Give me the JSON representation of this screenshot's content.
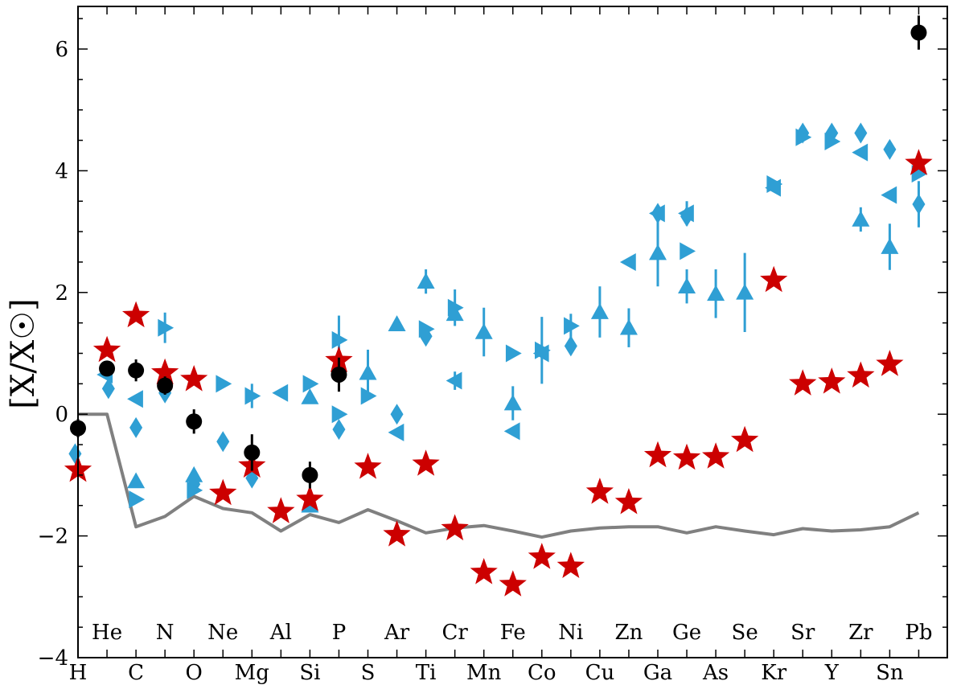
{
  "chart_data": {
    "type": "scatter",
    "ylabel": "[X/X☉]",
    "ylim": [
      -4,
      6.7
    ],
    "yticks": [
      -4,
      -2,
      0,
      2,
      4,
      6
    ],
    "grid": false,
    "elements_bottom": [
      "H",
      "C",
      "O",
      "Mg",
      "Si",
      "S",
      "Ti",
      "Mn",
      "Co",
      "Cu",
      "Ga",
      "As",
      "Kr",
      "Y",
      "Sn"
    ],
    "elements_top": [
      "He",
      "N",
      "Ne",
      "Al",
      "P",
      "Ar",
      "Cr",
      "Fe",
      "Ni",
      "Zn",
      "Ge",
      "Se",
      "Sr",
      "Zr",
      "Pb"
    ],
    "element_order": [
      "H",
      "He",
      "C",
      "N",
      "O",
      "Ne",
      "Mg",
      "Al",
      "Si",
      "P",
      "S",
      "Ar",
      "Ti",
      "Cr",
      "Mn",
      "Fe",
      "Co",
      "Ni",
      "Cu",
      "Zn",
      "Ga",
      "Ge",
      "As",
      "Se",
      "Kr",
      "Sr",
      "Y",
      "Zr",
      "Sn",
      "Pb"
    ],
    "colors": {
      "black": "#000000",
      "red": "#cc0000",
      "blue": "#2f9fd4",
      "line": "#808080"
    },
    "line_series": {
      "values": [
        0,
        0,
        -1.85,
        -1.68,
        -1.35,
        -1.55,
        -1.62,
        -1.92,
        -1.65,
        -1.78,
        -1.57,
        -1.75,
        -1.95,
        -1.87,
        -1.83,
        -1.92,
        -2.02,
        -1.92,
        -1.87,
        -1.85,
        -1.85,
        -1.95,
        -1.85,
        -1.92,
        -1.98,
        -1.88,
        -1.92,
        -1.9,
        -1.85,
        -1.62
      ]
    },
    "black_circles": [
      {
        "el": "H",
        "y": -0.23,
        "err": 0.15
      },
      {
        "el": "He",
        "y": 0.75,
        "err": 0.12
      },
      {
        "el": "C",
        "y": 0.72,
        "err": 0.18
      },
      {
        "el": "N",
        "y": 0.47,
        "err": 0.15
      },
      {
        "el": "O",
        "y": -0.12,
        "err": 0.2
      },
      {
        "el": "Mg",
        "y": -0.63,
        "err": 0.3
      },
      {
        "el": "Si",
        "y": -1.0,
        "err": 0.22
      },
      {
        "el": "P",
        "y": 0.65,
        "err": 0.28
      },
      {
        "el": "Pb",
        "y": 6.27,
        "err": 0.28
      }
    ],
    "red_stars": [
      {
        "el": "H",
        "y": -0.92
      },
      {
        "el": "He",
        "y": 1.05
      },
      {
        "el": "C",
        "y": 1.62
      },
      {
        "el": "N",
        "y": 0.68
      },
      {
        "el": "O",
        "y": 0.57
      },
      {
        "el": "Ne",
        "y": -1.3
      },
      {
        "el": "Mg",
        "y": -0.85
      },
      {
        "el": "Al",
        "y": -1.6
      },
      {
        "el": "Si",
        "y": -1.4
      },
      {
        "el": "P",
        "y": 0.88
      },
      {
        "el": "S",
        "y": -0.87
      },
      {
        "el": "Ar",
        "y": -1.98
      },
      {
        "el": "Ti",
        "y": -0.82
      },
      {
        "el": "Cr",
        "y": -1.88
      },
      {
        "el": "Mn",
        "y": -2.6
      },
      {
        "el": "Fe",
        "y": -2.8
      },
      {
        "el": "Co",
        "y": -2.35
      },
      {
        "el": "Ni",
        "y": -2.5
      },
      {
        "el": "Cu",
        "y": -1.28
      },
      {
        "el": "Zn",
        "y": -1.45
      },
      {
        "el": "Ga",
        "y": -0.68
      },
      {
        "el": "Ge",
        "y": -0.72
      },
      {
        "el": "As",
        "y": -0.7
      },
      {
        "el": "Se",
        "y": -0.43
      },
      {
        "el": "Kr",
        "y": 2.2
      },
      {
        "el": "Sr",
        "y": 0.5
      },
      {
        "el": "Y",
        "y": 0.53
      },
      {
        "el": "Zr",
        "y": 0.63
      },
      {
        "el": "Sn",
        "y": 0.82
      },
      {
        "el": "Pb",
        "y": 4.12
      }
    ],
    "blue_markers": [
      {
        "el": "H",
        "dx": -0.1,
        "y": -0.65,
        "shape": "diamond"
      },
      {
        "el": "He",
        "dx": 0.05,
        "y": 0.42,
        "shape": "diamond"
      },
      {
        "el": "He",
        "dx": -0.05,
        "y": 0.65,
        "shape": "tri-left"
      },
      {
        "el": "C",
        "dx": 0.0,
        "y": 0.25,
        "shape": "tri-left"
      },
      {
        "el": "C",
        "dx": 0.0,
        "y": -0.22,
        "shape": "diamond"
      },
      {
        "el": "C",
        "dx": 0.0,
        "y": -1.1,
        "shape": "tri-up"
      },
      {
        "el": "C",
        "dx": 0.0,
        "y": -1.4,
        "shape": "tri-right"
      },
      {
        "el": "N",
        "dx": 0.0,
        "y": 1.42,
        "shape": "tri-right",
        "err": 0.25
      },
      {
        "el": "N",
        "dx": 0.0,
        "y": 0.35,
        "shape": "diamond"
      },
      {
        "el": "O",
        "dx": 0.0,
        "y": -1.0,
        "shape": "tri-up"
      },
      {
        "el": "O",
        "dx": 0.0,
        "y": -1.15,
        "shape": "diamond"
      },
      {
        "el": "O",
        "dx": 0.0,
        "y": -1.25,
        "shape": "tri-right"
      },
      {
        "el": "Ne",
        "dx": 0.0,
        "y": 0.5,
        "shape": "tri-right"
      },
      {
        "el": "Ne",
        "dx": 0.0,
        "y": -0.45,
        "shape": "diamond"
      },
      {
        "el": "Mg",
        "dx": 0.0,
        "y": 0.3,
        "shape": "tri-right",
        "err": 0.2
      },
      {
        "el": "Mg",
        "dx": 0.0,
        "y": -1.05,
        "shape": "diamond"
      },
      {
        "el": "Al",
        "dx": 0.0,
        "y": 0.35,
        "shape": "tri-left"
      },
      {
        "el": "Si",
        "dx": 0.0,
        "y": 0.5,
        "shape": "tri-right"
      },
      {
        "el": "Si",
        "dx": 0.0,
        "y": 0.28,
        "shape": "tri-up"
      },
      {
        "el": "Si",
        "dx": 0.0,
        "y": -1.5,
        "shape": "tri-up"
      },
      {
        "el": "P",
        "dx": 0.0,
        "y": 1.22,
        "shape": "tri-right",
        "err": 0.4
      },
      {
        "el": "P",
        "dx": 0.0,
        "y": 0.0,
        "shape": "tri-right"
      },
      {
        "el": "P",
        "dx": 0.0,
        "y": -0.25,
        "shape": "diamond"
      },
      {
        "el": "S",
        "dx": 0.0,
        "y": 0.68,
        "shape": "tri-up",
        "err": 0.38
      },
      {
        "el": "S",
        "dx": 0.0,
        "y": 0.3,
        "shape": "tri-right"
      },
      {
        "el": "Ar",
        "dx": 0.0,
        "y": 1.48,
        "shape": "tri-up"
      },
      {
        "el": "Ar",
        "dx": 0.0,
        "y": 0.0,
        "shape": "diamond"
      },
      {
        "el": "Ar",
        "dx": 0.0,
        "y": -0.3,
        "shape": "tri-left"
      },
      {
        "el": "Ti",
        "dx": 0.0,
        "y": 2.18,
        "shape": "tri-up",
        "err": 0.2
      },
      {
        "el": "Ti",
        "dx": 0.0,
        "y": 1.4,
        "shape": "tri-right"
      },
      {
        "el": "Ti",
        "dx": 0.0,
        "y": 1.28,
        "shape": "diamond"
      },
      {
        "el": "Cr",
        "dx": 0.0,
        "y": 1.75,
        "shape": "tri-right",
        "err": 0.3
      },
      {
        "el": "Cr",
        "dx": 0.0,
        "y": 1.65,
        "shape": "tri-up"
      },
      {
        "el": "Cr",
        "dx": 0.0,
        "y": 0.55,
        "shape": "tri-left",
        "err": 0.15
      },
      {
        "el": "Mn",
        "dx": 0.0,
        "y": 1.35,
        "shape": "tri-up",
        "err": 0.4
      },
      {
        "el": "Fe",
        "dx": 0.0,
        "y": 1.0,
        "shape": "tri-right"
      },
      {
        "el": "Fe",
        "dx": 0.0,
        "y": 0.18,
        "shape": "tri-up",
        "err": 0.28
      },
      {
        "el": "Fe",
        "dx": 0.0,
        "y": -0.28,
        "shape": "tri-left"
      },
      {
        "el": "Co",
        "dx": 0.0,
        "y": 1.05,
        "shape": "tri-right",
        "err": 0.55
      },
      {
        "el": "Co",
        "dx": 0.0,
        "y": 1.0,
        "shape": "tri-left"
      },
      {
        "el": "Ni",
        "dx": 0.0,
        "y": 1.45,
        "shape": "tri-right",
        "err": 0.2
      },
      {
        "el": "Ni",
        "dx": 0.0,
        "y": 1.12,
        "shape": "diamond"
      },
      {
        "el": "Cu",
        "dx": 0.0,
        "y": 1.68,
        "shape": "tri-up",
        "err": 0.42
      },
      {
        "el": "Zn",
        "dx": 0.0,
        "y": 2.5,
        "shape": "tri-left"
      },
      {
        "el": "Zn",
        "dx": 0.0,
        "y": 1.42,
        "shape": "tri-up",
        "err": 0.32
      },
      {
        "el": "Ga",
        "dx": 0.0,
        "y": 3.3,
        "shape": "tri-left"
      },
      {
        "el": "Ga",
        "dx": 0.0,
        "y": 3.3,
        "shape": "diamond"
      },
      {
        "el": "Ga",
        "dx": 0.0,
        "y": 2.65,
        "shape": "tri-up",
        "err": 0.55
      },
      {
        "el": "Ge",
        "dx": 0.0,
        "y": 3.3,
        "shape": "tri-left",
        "err": 0.2
      },
      {
        "el": "Ge",
        "dx": 0.0,
        "y": 3.25,
        "shape": "diamond"
      },
      {
        "el": "Ge",
        "dx": 0.0,
        "y": 2.68,
        "shape": "tri-right"
      },
      {
        "el": "Ge",
        "dx": 0.0,
        "y": 2.1,
        "shape": "tri-up",
        "err": 0.28
      },
      {
        "el": "As",
        "dx": 0.0,
        "y": 1.98,
        "shape": "tri-up",
        "err": 0.4
      },
      {
        "el": "Se",
        "dx": 0.0,
        "y": 2.0,
        "shape": "tri-up",
        "err": 0.65
      },
      {
        "el": "Kr",
        "dx": 0.0,
        "y": 3.78,
        "shape": "tri-right"
      },
      {
        "el": "Kr",
        "dx": 0.0,
        "y": 3.72,
        "shape": "tri-left"
      },
      {
        "el": "Sr",
        "dx": 0.0,
        "y": 4.62,
        "shape": "diamond"
      },
      {
        "el": "Sr",
        "dx": 0.0,
        "y": 4.55,
        "shape": "tri-right"
      },
      {
        "el": "Y",
        "dx": 0.0,
        "y": 4.62,
        "shape": "diamond"
      },
      {
        "el": "Y",
        "dx": 0.0,
        "y": 4.48,
        "shape": "tri-right"
      },
      {
        "el": "Zr",
        "dx": 0.0,
        "y": 4.62,
        "shape": "diamond"
      },
      {
        "el": "Zr",
        "dx": 0.0,
        "y": 4.3,
        "shape": "tri-left"
      },
      {
        "el": "Zr",
        "dx": 0.0,
        "y": 3.2,
        "shape": "tri-up",
        "err": 0.2
      },
      {
        "el": "Sn",
        "dx": 0.0,
        "y": 4.35,
        "shape": "diamond"
      },
      {
        "el": "Sn",
        "dx": 0.0,
        "y": 3.6,
        "shape": "tri-left"
      },
      {
        "el": "Sn",
        "dx": 0.0,
        "y": 2.75,
        "shape": "tri-up",
        "err": 0.38
      },
      {
        "el": "Pb",
        "dx": 0.0,
        "y": 3.95,
        "shape": "tri-right"
      },
      {
        "el": "Pb",
        "dx": 0.0,
        "y": 3.45,
        "shape": "diamond",
        "err": 0.38
      }
    ]
  }
}
